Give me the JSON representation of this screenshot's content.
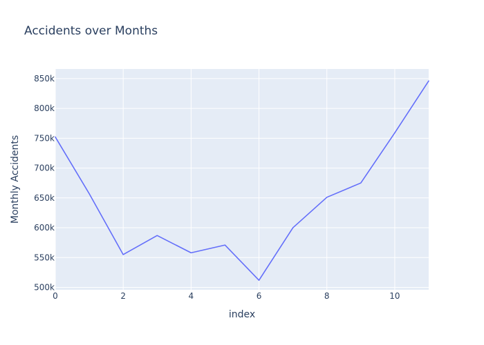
{
  "page": {
    "background": "#ffffff",
    "plot_background": "#e5ecf6",
    "grid_color": "#ffffff",
    "text_color": "#2a3f5f"
  },
  "chart_data": {
    "type": "line",
    "title": "Accidents over Months",
    "xlabel": "index",
    "ylabel": "Monthly Accidents",
    "x": [
      0,
      1,
      2,
      3,
      4,
      5,
      6,
      7,
      8,
      9,
      10,
      11
    ],
    "series": [
      {
        "values": [
          752000,
          657000,
          555000,
          587000,
          558000,
          571000,
          512000,
          600000,
          651000,
          675000,
          759000,
          846000
        ],
        "color": "#636efa"
      }
    ],
    "xlim": [
      0,
      11
    ],
    "ylim": [
      496000,
      866000
    ],
    "xticks": [
      0,
      2,
      4,
      6,
      8,
      10
    ],
    "xtick_labels": [
      "0",
      "2",
      "4",
      "6",
      "8",
      "10"
    ],
    "yticks": [
      500000,
      550000,
      600000,
      650000,
      700000,
      750000,
      800000,
      850000
    ],
    "ytick_labels": [
      "500k",
      "550k",
      "600k",
      "650k",
      "700k",
      "750k",
      "800k",
      "850k"
    ],
    "grid": true,
    "legend": "none"
  }
}
